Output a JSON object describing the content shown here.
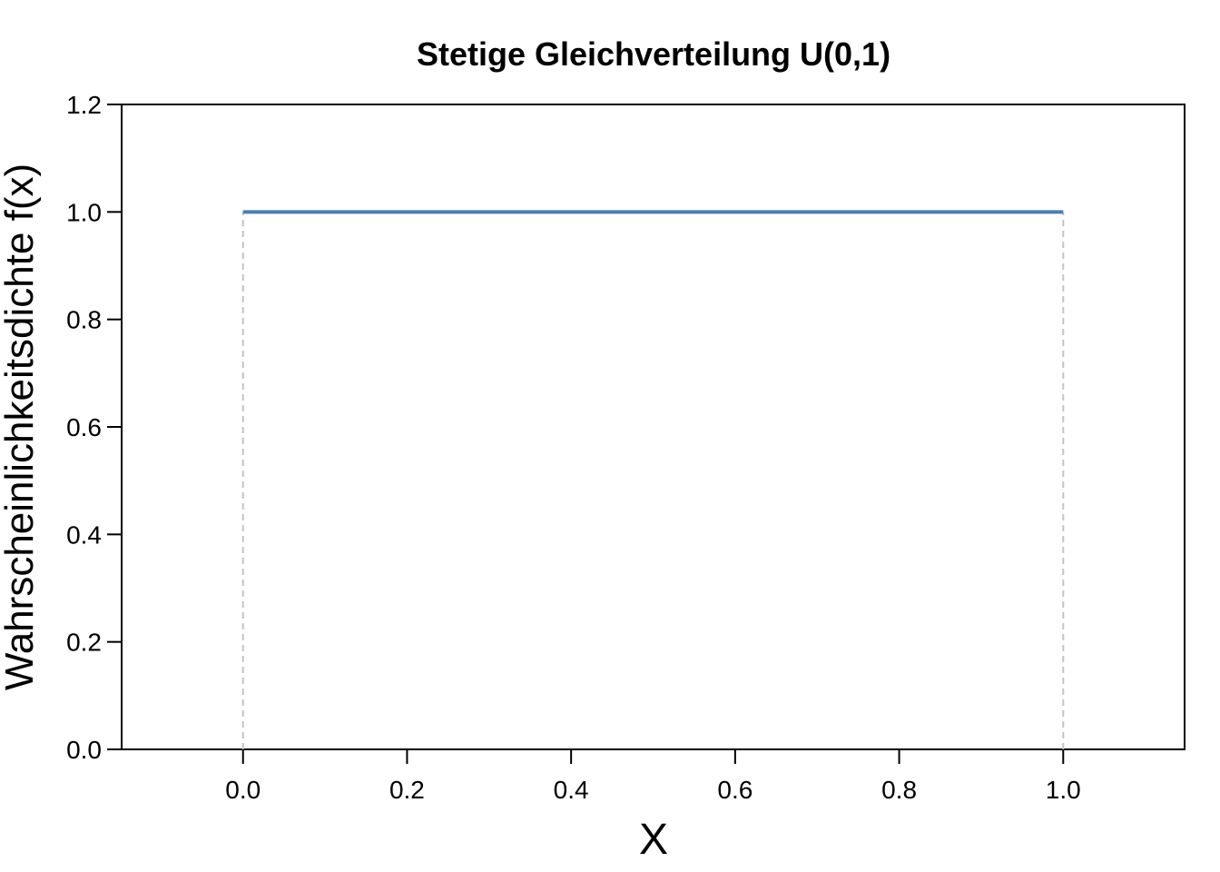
{
  "chart_data": {
    "type": "line",
    "title": "Stetige Gleichverteilung U(0,1)",
    "x_label": "X",
    "y_label": "Wahrscheinlichkeitsdichte f(x)",
    "x": [
      0,
      1
    ],
    "values": [
      1,
      1
    ],
    "color": "#4a7fb0",
    "vlines": {
      "x": [
        0,
        1
      ],
      "color": "#c4c4c4"
    },
    "xlim": [
      -0.148,
      1.148
    ],
    "ylim": [
      0,
      1.2
    ],
    "xticks": [
      {
        "value": 0,
        "label": "0.0"
      },
      {
        "value": 0.2,
        "label": "0.2"
      },
      {
        "value": 0.4,
        "label": "0.4"
      },
      {
        "value": 0.6,
        "label": "0.6"
      },
      {
        "value": 0.8,
        "label": "0.8"
      },
      {
        "value": 1,
        "label": "1.0"
      }
    ],
    "yticks": [
      {
        "value": 0,
        "label": "0.0"
      },
      {
        "value": 0.2,
        "label": "0.2"
      },
      {
        "value": 0.4,
        "label": "0.4"
      },
      {
        "value": 0.6,
        "label": "0.6"
      },
      {
        "value": 0.8,
        "label": "0.8"
      },
      {
        "value": 1,
        "label": "1.0"
      },
      {
        "value": 1.2,
        "label": "1.2"
      }
    ]
  }
}
